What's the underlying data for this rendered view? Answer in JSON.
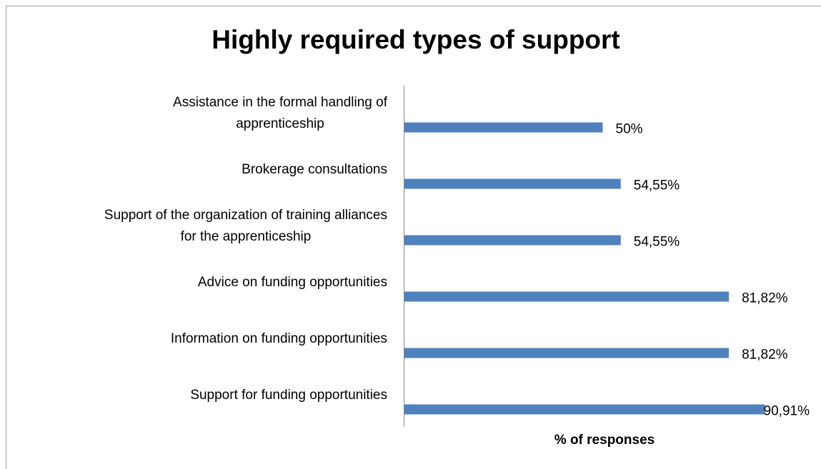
{
  "chart_data": {
    "type": "bar",
    "orientation": "horizontal",
    "title": "Highly required types of support",
    "x_label": "% of responses",
    "categories": [
      "Assistance in the formal handling of\napprenticeship",
      "Brokerage consultations",
      "Support of the organization of training alliances\nfor the apprenticeship",
      "Advice on funding opportunities",
      "Information on funding opportunities",
      "Support for funding opportunities"
    ],
    "values": [
      50,
      54.55,
      54.55,
      81.82,
      81.82,
      90.91
    ],
    "value_labels": [
      "50%",
      "54,55%",
      "54,55%",
      "81,82%",
      "81,82%",
      "90,91%"
    ],
    "color": "#4f81bd",
    "xlim": [
      0,
      100
    ]
  }
}
